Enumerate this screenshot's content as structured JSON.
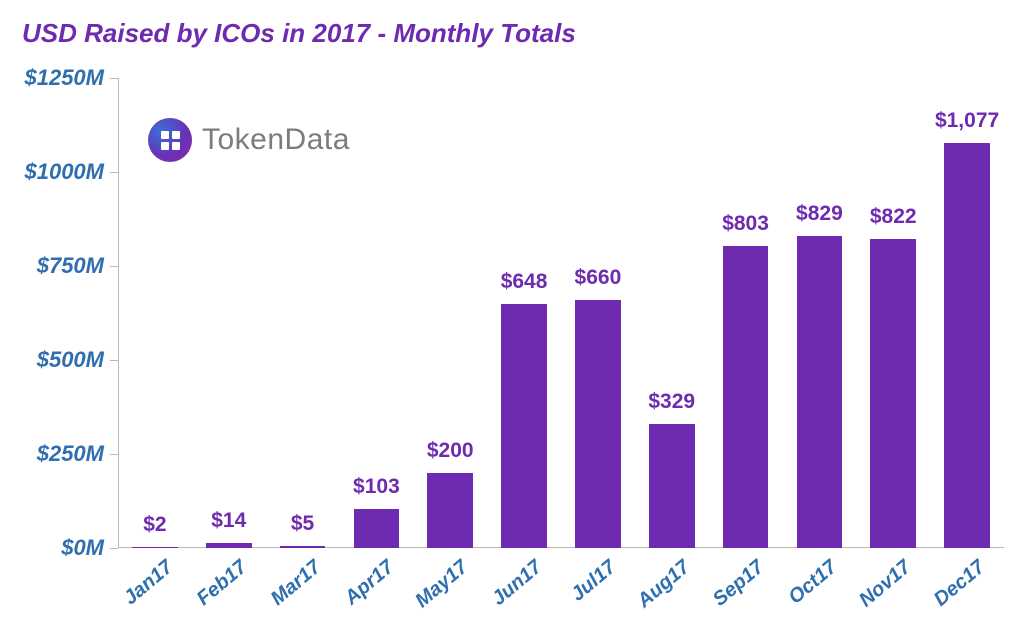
{
  "chart": {
    "type": "bar",
    "title": "USD Raised by ICOs in 2017 - Monthly Totals",
    "title_color": "#6e2ab0",
    "title_fontsize": 26,
    "categories": [
      "Jan17",
      "Feb17",
      "Mar17",
      "Apr17",
      "May17",
      "Jun17",
      "Jul17",
      "Aug17",
      "Sep17",
      "Oct17",
      "Nov17",
      "Dec17"
    ],
    "values": [
      2,
      14,
      5,
      103,
      200,
      648,
      660,
      329,
      803,
      829,
      822,
      1077
    ],
    "value_labels": [
      "$2",
      "$14",
      "$5",
      "$103",
      "$200",
      "$648",
      "$660",
      "$329",
      "$803",
      "$829",
      "$822",
      "$1,077"
    ],
    "bar_color": "#6e2ab0",
    "bar_label_color": "#6e2ab0",
    "bar_label_fontsize": 21,
    "bar_width_ratio": 0.62,
    "ylim": [
      0,
      1250
    ],
    "ytick_step": 250,
    "ytick_labels": [
      "$0M",
      "$250M",
      "$500M",
      "$750M",
      "$1000M",
      "$1250M"
    ],
    "ytick_color": "#2f6fb0",
    "ytick_fontsize": 22,
    "xtick_color": "#2f6fb0",
    "xtick_fontsize": 20,
    "xtick_rotation_deg": -40,
    "axis_line_color": "#b9b9b9",
    "background_color": "#ffffff",
    "brand": {
      "text": "TokenData",
      "text_color": "#7c7c7c",
      "text_fontsize": 30,
      "logo_gradient_from": "#3a6fd8",
      "logo_gradient_to": "#8e2fa5"
    }
  }
}
